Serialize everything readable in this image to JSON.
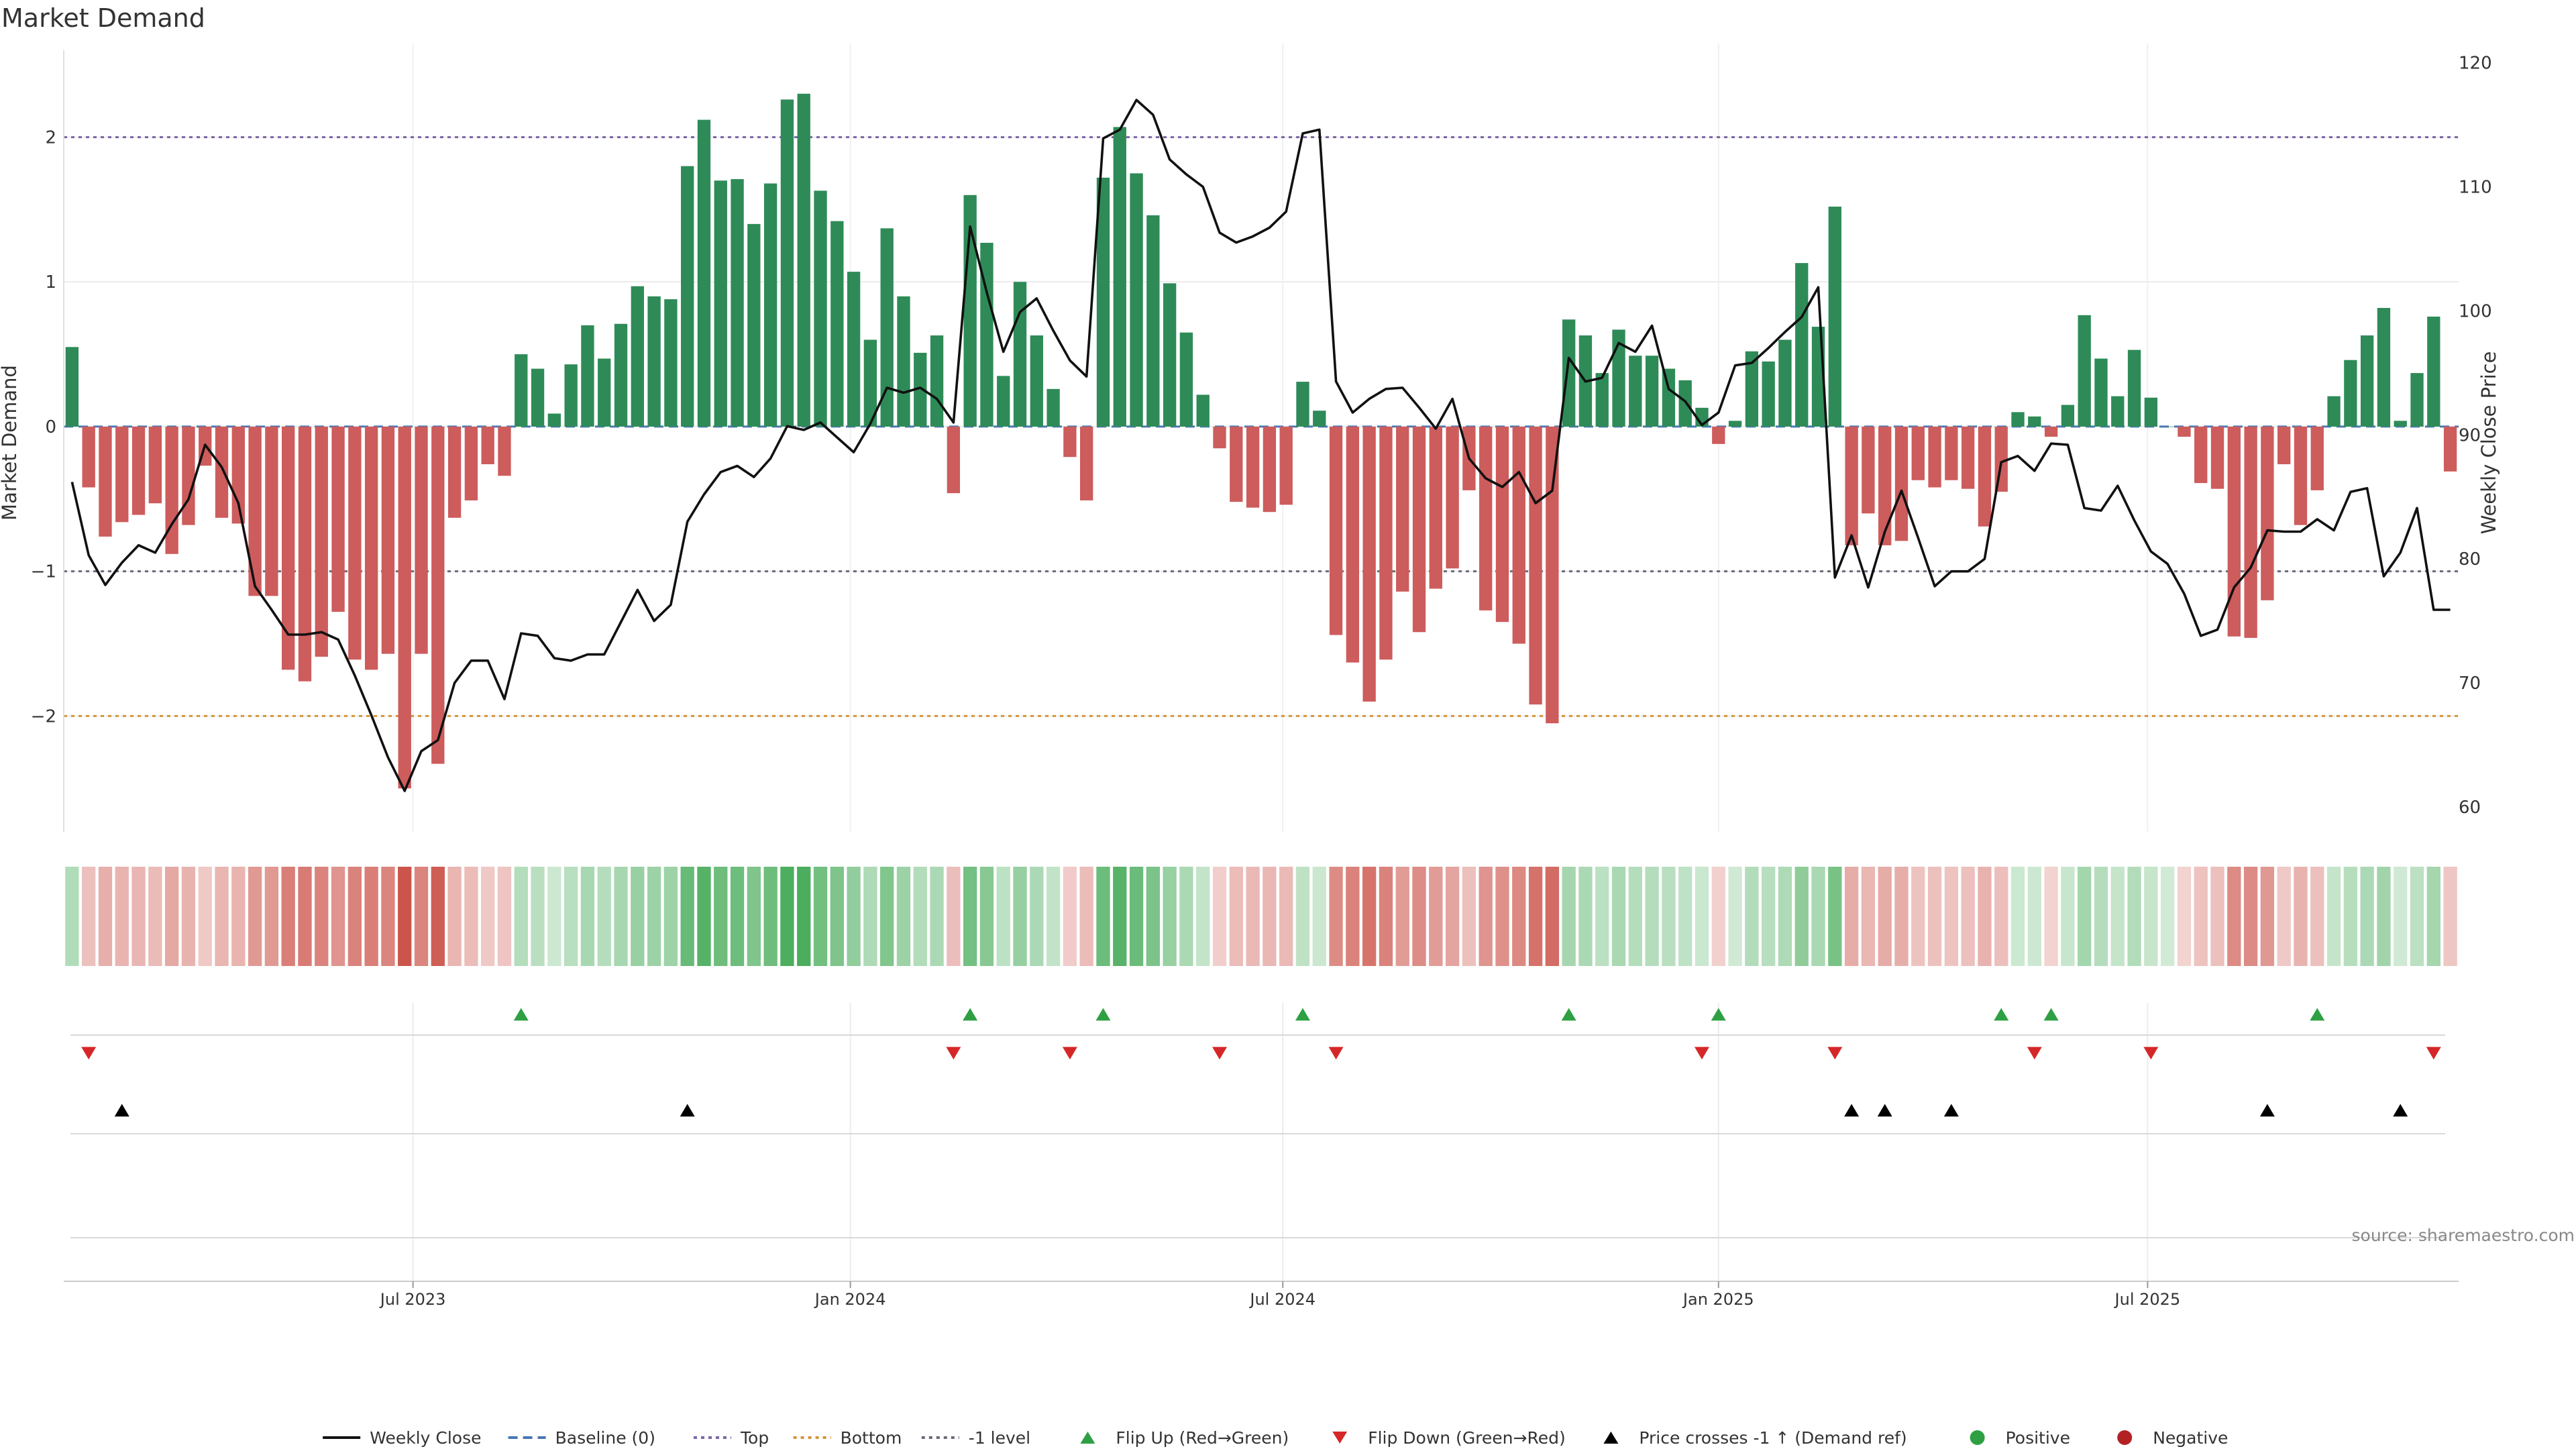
{
  "chart_data": {
    "type": "bar",
    "title": "Market Demand",
    "ylabel_left": "Market Demand",
    "ylabel_right": "Weekly Close Price",
    "ylim_left": [
      -2.8,
      2.6
    ],
    "ylim_right": [
      58,
      121
    ],
    "y_ticks_left": [
      {
        "v": 2,
        "label": "2"
      },
      {
        "v": 1,
        "label": "1"
      },
      {
        "v": 0,
        "label": "0"
      },
      {
        "v": -1,
        "label": "−1"
      },
      {
        "v": -2,
        "label": "−2"
      }
    ],
    "y_ticks_right": [
      {
        "v": 120,
        "label": "120"
      },
      {
        "v": 110,
        "label": "110"
      },
      {
        "v": 100,
        "label": "100"
      },
      {
        "v": 90,
        "label": "90"
      },
      {
        "v": 80,
        "label": "80"
      },
      {
        "v": 70,
        "label": "70"
      },
      {
        "v": 60,
        "label": "60"
      }
    ],
    "x_ticks": [
      {
        "i": 20.5,
        "label": "Jul 2023"
      },
      {
        "i": 46.8,
        "label": "Jan 2024"
      },
      {
        "i": 72.8,
        "label": "Jul 2024"
      },
      {
        "i": 99.0,
        "label": "Jan 2025"
      },
      {
        "i": 124.8,
        "label": "Jul 2025"
      }
    ],
    "reference_lines": [
      {
        "name": "Top",
        "value": 2,
        "color": "#7b68a6",
        "dash": "dotted"
      },
      {
        "name": "Bottom",
        "value": -2,
        "color": "#d4963a",
        "dash": "dotted"
      },
      {
        "name": "-1 level",
        "value": -1,
        "color": "#6b6b7b",
        "dash": "dotted"
      },
      {
        "name": "Baseline (0)",
        "value": 0,
        "color": "#4a77b4",
        "dash": "dashed"
      }
    ],
    "n_weeks": 144,
    "series": [
      {
        "name": "Market Demand",
        "values": [
          0.55,
          -0.42,
          -0.76,
          -0.66,
          -0.61,
          -0.53,
          -0.88,
          -0.68,
          -0.27,
          -0.63,
          -0.67,
          -1.17,
          -1.17,
          -1.68,
          -1.76,
          -1.59,
          -1.28,
          -1.61,
          -1.68,
          -1.57,
          -2.5,
          -1.57,
          -2.33,
          -0.63,
          -0.51,
          -0.26,
          -0.34,
          0.5,
          0.4,
          0.09,
          0.43,
          0.7,
          0.47,
          0.71,
          0.97,
          0.9,
          0.88,
          1.8,
          2.12,
          1.7,
          1.71,
          1.4,
          1.68,
          2.26,
          2.3,
          1.63,
          1.42,
          1.07,
          0.6,
          1.37,
          0.9,
          0.51,
          0.63,
          -0.46,
          1.6,
          1.27,
          0.35,
          1.0,
          0.63,
          0.26,
          -0.21,
          -0.51,
          1.72,
          2.07,
          1.75,
          1.46,
          0.99,
          0.65,
          0.22,
          -0.15,
          -0.52,
          -0.56,
          -0.59,
          -0.54,
          0.31,
          0.11,
          -1.44,
          -1.63,
          -1.9,
          -1.61,
          -1.14,
          -1.42,
          -1.12,
          -0.98,
          -0.44,
          -1.27,
          -1.35,
          -1.5,
          -1.92,
          -2.05,
          0.74,
          0.63,
          0.37,
          0.67,
          0.49,
          0.49,
          0.4,
          0.32,
          0.13,
          -0.12,
          0.04,
          0.52,
          0.45,
          0.6,
          1.13,
          0.69,
          1.52,
          -0.82,
          -0.6,
          -0.82,
          -0.79,
          -0.37,
          -0.42,
          -0.37,
          -0.43,
          -0.69,
          -0.45,
          0.1,
          0.07,
          -0.07,
          0.15,
          0.77,
          0.47,
          0.21,
          0.53,
          0.2,
          0.0,
          -0.07,
          -0.39,
          -0.43,
          -1.45,
          -1.46,
          -1.2,
          -0.26,
          -0.68,
          -0.44,
          0.21,
          0.46,
          0.63,
          0.82,
          0.04,
          0.37,
          0.76,
          -0.31
        ]
      },
      {
        "name": "Weekly Close",
        "values": [
          86.2,
          80.3,
          77.9,
          79.7,
          81.1,
          80.5,
          82.8,
          84.8,
          89.2,
          87.4,
          84.5,
          77.8,
          75.9,
          73.9,
          73.9,
          74.1,
          73.5,
          70.6,
          67.4,
          64.0,
          61.3,
          64.5,
          65.4,
          70.0,
          71.8,
          71.8,
          68.7,
          74.0,
          73.8,
          72.0,
          71.8,
          72.3,
          72.3,
          74.9,
          77.5,
          75.0,
          76.3,
          83.0,
          85.2,
          87.0,
          87.5,
          86.6,
          88.1,
          90.7,
          90.4,
          91.0,
          89.8,
          88.6,
          90.9,
          93.8,
          93.4,
          93.8,
          92.9,
          91.0,
          106.8,
          101.5,
          96.7,
          99.9,
          101.0,
          98.4,
          96.0,
          94.7,
          113.9,
          114.6,
          117.0,
          115.8,
          112.2,
          111.0,
          110.0,
          106.3,
          105.5,
          106.0,
          106.7,
          108.0,
          114.3,
          114.6,
          94.3,
          91.8,
          92.9,
          93.7,
          93.8,
          92.2,
          90.5,
          92.9,
          88.1,
          86.5,
          85.8,
          87.0,
          84.5,
          85.5,
          96.2,
          94.3,
          94.6,
          97.4,
          96.7,
          98.8,
          93.7,
          92.7,
          90.8,
          91.8,
          95.6,
          95.8,
          97.0,
          98.3,
          99.5,
          101.9,
          78.5,
          81.9,
          77.7,
          82.2,
          85.5,
          81.7,
          77.8,
          79.0,
          79.0,
          80.0,
          87.8,
          88.3,
          87.1,
          89.3,
          89.2,
          84.1,
          83.9,
          85.9,
          83.1,
          80.6,
          79.6,
          77.2,
          73.8,
          74.3,
          77.7,
          79.3,
          82.3,
          82.2,
          82.2,
          83.2,
          82.3,
          85.4,
          85.7,
          78.6,
          80.5,
          84.1,
          75.9,
          75.9
        ]
      }
    ],
    "flip_up_indices": [
      27,
      54,
      62,
      74,
      90,
      99,
      116,
      119,
      135
    ],
    "flip_down_indices": [
      1,
      53,
      60,
      69,
      76,
      98,
      106,
      118,
      125,
      142
    ],
    "price_cross_indices": [
      3,
      37,
      107,
      109,
      113,
      132,
      140
    ],
    "legend": [
      {
        "label": "Weekly Close",
        "kind": "line",
        "color": "#111111"
      },
      {
        "label": "Baseline (0)",
        "kind": "dashed",
        "color": "#4a77b4"
      },
      {
        "label": "Top",
        "kind": "dotted",
        "color": "#7b68a6"
      },
      {
        "label": "Bottom",
        "kind": "dotted",
        "color": "#d4963a"
      },
      {
        "label": "-1 level",
        "kind": "dotted",
        "color": "#6b6b7b"
      },
      {
        "label": "Flip Up (Red→Green)",
        "kind": "tri-up",
        "color": "#2ea043"
      },
      {
        "label": "Flip Down (Green→Red)",
        "kind": "tri-down",
        "color": "#d62728"
      },
      {
        "label": "Price crosses -1 ↑ (Demand ref)",
        "kind": "tri-up",
        "color": "#000000"
      },
      {
        "label": "Positive",
        "kind": "dot",
        "color": "#2ea043"
      },
      {
        "label": "Negative",
        "kind": "dot",
        "color": "#b22222"
      }
    ],
    "source": "source: sharemaestro.com",
    "colors": {
      "positive_bar": "#2e8b57",
      "negative_bar": "#cd5c5c",
      "line": "#111111",
      "flip_up": "#2ea043",
      "flip_down": "#d62728",
      "cross": "#000000"
    }
  }
}
